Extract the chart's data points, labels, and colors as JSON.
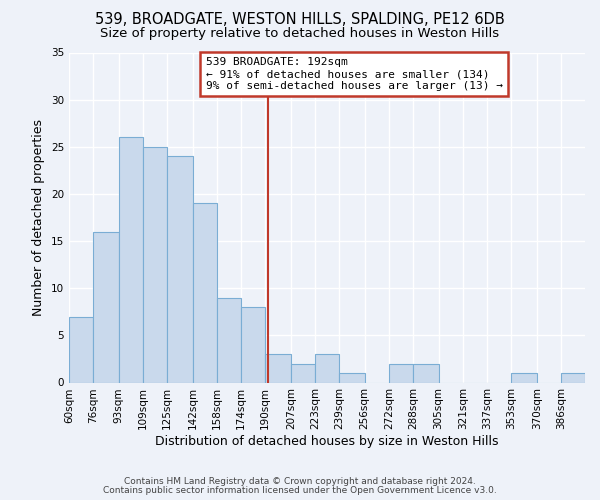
{
  "title": "539, BROADGATE, WESTON HILLS, SPALDING, PE12 6DB",
  "subtitle": "Size of property relative to detached houses in Weston Hills",
  "xlabel": "Distribution of detached houses by size in Weston Hills",
  "ylabel": "Number of detached properties",
  "footer_line1": "Contains HM Land Registry data © Crown copyright and database right 2024.",
  "footer_line2": "Contains public sector information licensed under the Open Government Licence v3.0.",
  "bin_labels": [
    "60sqm",
    "76sqm",
    "93sqm",
    "109sqm",
    "125sqm",
    "142sqm",
    "158sqm",
    "174sqm",
    "190sqm",
    "207sqm",
    "223sqm",
    "239sqm",
    "256sqm",
    "272sqm",
    "288sqm",
    "305sqm",
    "321sqm",
    "337sqm",
    "353sqm",
    "370sqm",
    "386sqm"
  ],
  "bin_edges": [
    60,
    76,
    93,
    109,
    125,
    142,
    158,
    174,
    190,
    207,
    223,
    239,
    256,
    272,
    288,
    305,
    321,
    337,
    353,
    370,
    386,
    402
  ],
  "counts": [
    7,
    16,
    26,
    25,
    24,
    19,
    9,
    8,
    3,
    2,
    3,
    1,
    0,
    2,
    2,
    0,
    0,
    0,
    1,
    0,
    1
  ],
  "bar_color": "#c9d9ec",
  "bar_edge_color": "#7aadd4",
  "vline_x": 192,
  "vline_color": "#c0392b",
  "annotation_title": "539 BROADGATE: 192sqm",
  "annotation_line2": "← 91% of detached houses are smaller (134)",
  "annotation_line3": "9% of semi-detached houses are larger (13) →",
  "annotation_box_edge": "#c0392b",
  "annotation_box_bg": "white",
  "ylim": [
    0,
    35
  ],
  "yticks": [
    0,
    5,
    10,
    15,
    20,
    25,
    30,
    35
  ],
  "bg_color": "#eef2f9",
  "grid_color": "#ffffff",
  "title_fontsize": 10.5,
  "subtitle_fontsize": 9.5,
  "axis_label_fontsize": 9,
  "tick_fontsize": 7.5,
  "footer_fontsize": 6.5
}
